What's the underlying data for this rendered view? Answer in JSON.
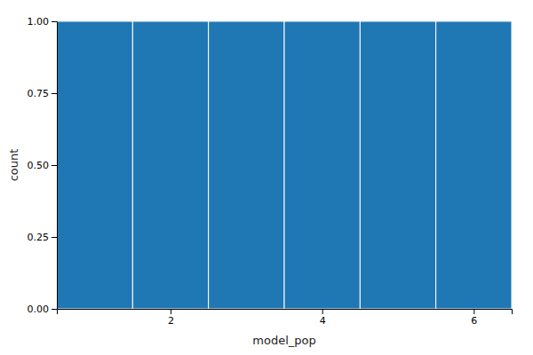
{
  "chart_data": {
    "type": "histogram",
    "x_label": "model_pop",
    "y_label": "count",
    "bins": [
      0.5,
      1.5,
      2.5,
      3.5,
      4.5,
      5.5,
      6.5
    ],
    "values": [
      1.0,
      1.0,
      1.0,
      1.0,
      1.0,
      1.0
    ],
    "xlim": [
      0.5,
      6.5
    ],
    "xticks": [
      2,
      4,
      6
    ],
    "ylim": [
      0.0,
      1.0
    ],
    "yticks": [
      {
        "value": 0.0,
        "label": "0.00"
      },
      {
        "value": 0.25,
        "label": "0.25"
      },
      {
        "value": 0.5,
        "label": "0.50"
      },
      {
        "value": 0.75,
        "label": "0.75"
      },
      {
        "value": 1.0,
        "label": "1.00"
      }
    ],
    "grid": true
  }
}
